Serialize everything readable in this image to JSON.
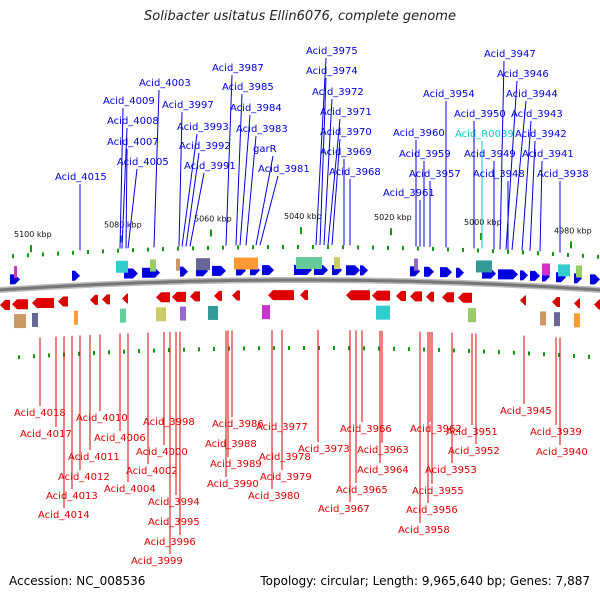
{
  "title": "Solibacter usitatus Ellin6076, complete genome",
  "footer": {
    "accession": "Accession: NC_008536",
    "topology": "Topology: circular; Length: 9,965,640 bp; Genes: 7,887"
  },
  "colors": {
    "forward": "#0000dd",
    "reverse": "#dd0000",
    "rna": "#00cccc",
    "backbone": "#777777",
    "ticks": "#119911"
  },
  "scale_labels": [
    "5100 kbp",
    "5080 kbp",
    "5060 kbp",
    "5040 kbp",
    "5020 kbp",
    "5000 kbp",
    "4980 kbp"
  ],
  "top_labels": [
    "Acid_4015",
    "Acid_4009",
    "Acid_4008",
    "Acid_4007",
    "Acid_4005",
    "Acid_4003",
    "Acid_3997",
    "Acid_3993",
    "Acid_3992",
    "Acid_3991",
    "Acid_3987",
    "Acid_3985",
    "Acid_3984",
    "Acid_3983",
    "garR",
    "Acid_3981",
    "Acid_3975",
    "Acid_3974",
    "Acid_3972",
    "Acid_3971",
    "Acid_3970",
    "Acid_3969",
    "Acid_3968",
    "Acid_3960",
    "Acid_3959",
    "Acid_3957",
    "Acid_3961",
    "Acid_3954",
    "Acid_3950",
    "Acid_R0039",
    "Acid_3949",
    "Acid_3948",
    "Acid_3947",
    "Acid_3946",
    "Acid_3944",
    "Acid_3943",
    "Acid_3942",
    "Acid_3941",
    "Acid_3938"
  ],
  "bottom_labels": [
    "Acid_4018",
    "Acid_4017",
    "Acid_4010",
    "Acid_4006",
    "Acid_4011",
    "Acid_4012",
    "Acid_4013",
    "Acid_4014",
    "Acid_4004",
    "Acid_4002",
    "Acid_3998",
    "Acid_4000",
    "Acid_3994",
    "Acid_3995",
    "Acid_3996",
    "Acid_3999",
    "Acid_3986",
    "Acid_3988",
    "Acid_3989",
    "Acid_3990",
    "Acid_3977",
    "Acid_3978",
    "Acid_3979",
    "Acid_3980",
    "Acid_3973",
    "Acid_3966",
    "Acid_3965",
    "Acid_3967",
    "Acid_3963",
    "Acid_3964",
    "Acid_3962",
    "Acid_3955",
    "Acid_3956",
    "Acid_3958",
    "Acid_3953",
    "Acid_3951",
    "Acid_3952",
    "Acid_3945",
    "Acid_3939",
    "Acid_3940"
  ]
}
